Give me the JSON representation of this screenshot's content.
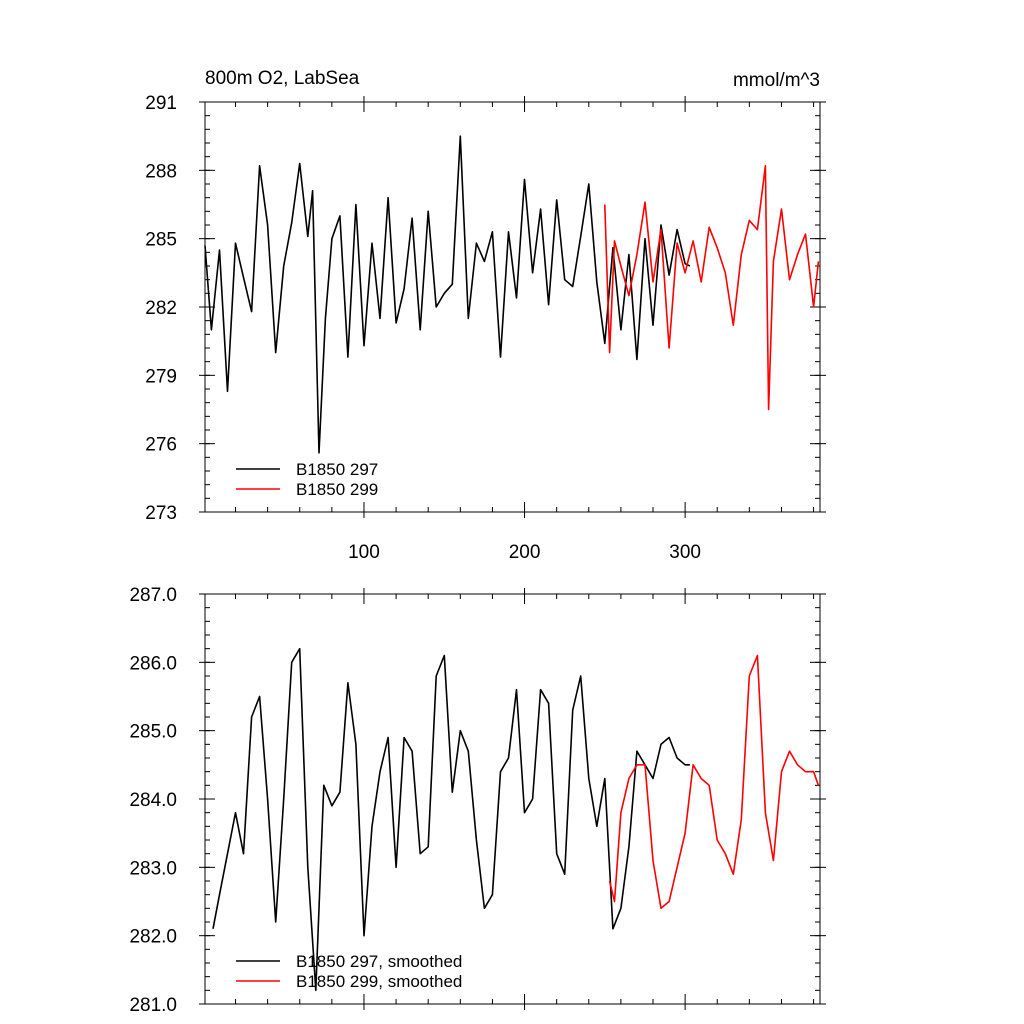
{
  "chart_data": [
    {
      "type": "line",
      "title": "800m O2, LabSea",
      "units": "mmol/m^3",
      "xlim": [
        1,
        384
      ],
      "ylim": [
        273,
        291
      ],
      "x_ticks": [
        100,
        200,
        300
      ],
      "y_ticks": [
        273,
        276,
        279,
        282,
        285,
        288,
        291
      ],
      "y_tick_labels": [
        "273",
        "276",
        "279",
        "282",
        "285",
        "288",
        "291"
      ],
      "legend_position": "bottom-left",
      "grid": false,
      "series": [
        {
          "name": "B1850 297",
          "color": "#000000",
          "x": [
            1,
            5,
            10,
            15,
            20,
            25,
            30,
            35,
            40,
            45,
            50,
            55,
            60,
            65,
            68,
            72,
            76,
            80,
            85,
            90,
            95,
            100,
            105,
            110,
            115,
            120,
            125,
            130,
            135,
            140,
            145,
            150,
            155,
            160,
            165,
            170,
            175,
            180,
            185,
            190,
            195,
            200,
            205,
            210,
            215,
            220,
            225,
            230,
            235,
            240,
            245,
            250,
            255,
            260,
            265,
            270,
            275,
            280,
            285,
            290,
            295,
            300,
            303
          ],
          "values": [
            284.7,
            281.0,
            284.5,
            278.3,
            284.8,
            283.3,
            281.8,
            288.2,
            285.6,
            280.0,
            283.8,
            285.7,
            288.3,
            285.1,
            287.1,
            275.6,
            281.5,
            285.0,
            286.0,
            279.8,
            286.5,
            280.3,
            284.8,
            281.5,
            286.8,
            281.3,
            282.8,
            285.9,
            281.0,
            286.2,
            282.0,
            282.6,
            283.0,
            289.5,
            281.5,
            284.8,
            284.0,
            285.3,
            279.8,
            285.3,
            282.4,
            287.6,
            283.5,
            286.3,
            282.1,
            286.7,
            283.2,
            282.9,
            285.1,
            287.4,
            283.1,
            280.4,
            284.6,
            281.0,
            284.3,
            279.7,
            285.0,
            281.2,
            285.6,
            283.4,
            285.4,
            283.9,
            283.8
          ]
        },
        {
          "name": "B1850 299",
          "color": "#ff0000",
          "x": [
            250,
            253,
            256,
            260,
            265,
            270,
            275,
            280,
            285,
            290,
            295,
            300,
            305,
            310,
            315,
            320,
            325,
            330,
            335,
            340,
            345,
            350,
            352,
            355,
            360,
            365,
            370,
            375,
            380,
            383
          ],
          "values": [
            286.5,
            280.0,
            284.9,
            283.8,
            282.5,
            284.3,
            286.6,
            283.1,
            285.4,
            280.2,
            284.8,
            283.5,
            284.9,
            283.1,
            285.5,
            284.6,
            283.5,
            281.2,
            284.3,
            285.8,
            285.4,
            288.2,
            277.5,
            284.0,
            286.3,
            283.2,
            284.3,
            285.2,
            282.0,
            284.0
          ]
        }
      ]
    },
    {
      "type": "line",
      "xlim": [
        1,
        384
      ],
      "ylim": [
        281.0,
        287.0
      ],
      "x_ticks": [
        100,
        200,
        300
      ],
      "y_ticks": [
        281.0,
        282.0,
        283.0,
        284.0,
        285.0,
        286.0,
        287.0
      ],
      "y_tick_labels": [
        "281.0",
        "282.0",
        "283.0",
        "284.0",
        "285.0",
        "286.0",
        "287.0"
      ],
      "legend_position": "bottom-left",
      "grid": false,
      "series": [
        {
          "name": "B1850 297, smoothed",
          "color": "#000000",
          "x": [
            6,
            10,
            15,
            20,
            25,
            30,
            35,
            40,
            45,
            50,
            55,
            60,
            65,
            70,
            75,
            80,
            85,
            90,
            95,
            100,
            105,
            110,
            115,
            120,
            125,
            130,
            135,
            140,
            145,
            150,
            155,
            160,
            165,
            170,
            175,
            180,
            185,
            190,
            195,
            200,
            205,
            210,
            215,
            220,
            225,
            230,
            235,
            240,
            245,
            250,
            255,
            260,
            265,
            270,
            275,
            280,
            285,
            290,
            295,
            300,
            303
          ],
          "values": [
            282.1,
            282.6,
            283.2,
            283.8,
            283.2,
            285.2,
            285.5,
            284.0,
            282.2,
            284.0,
            286.0,
            286.2,
            283.0,
            281.2,
            284.2,
            283.9,
            284.1,
            285.7,
            284.8,
            282.0,
            283.6,
            284.4,
            284.9,
            283.0,
            284.9,
            284.7,
            283.2,
            283.3,
            285.8,
            286.1,
            284.1,
            285.0,
            284.7,
            283.4,
            282.4,
            282.6,
            284.4,
            284.6,
            285.6,
            283.8,
            284.0,
            285.6,
            285.4,
            283.2,
            282.9,
            285.3,
            285.8,
            284.3,
            283.6,
            284.3,
            282.1,
            282.4,
            283.3,
            284.7,
            284.5,
            284.3,
            284.8,
            284.9,
            284.6,
            284.5,
            284.5
          ]
        },
        {
          "name": "B1850 299, smoothed",
          "color": "#ff0000",
          "x": [
            253,
            256,
            260,
            265,
            270,
            275,
            280,
            285,
            290,
            295,
            300,
            305,
            310,
            315,
            320,
            325,
            330,
            335,
            340,
            345,
            350,
            355,
            360,
            365,
            370,
            375,
            380,
            383
          ],
          "values": [
            282.8,
            282.5,
            283.8,
            284.3,
            284.5,
            284.5,
            283.1,
            282.4,
            282.5,
            283.0,
            283.5,
            284.5,
            284.3,
            284.2,
            283.4,
            283.2,
            282.9,
            283.7,
            285.8,
            286.1,
            283.8,
            283.1,
            284.4,
            284.7,
            284.5,
            284.4,
            284.4,
            284.2
          ]
        }
      ]
    }
  ]
}
